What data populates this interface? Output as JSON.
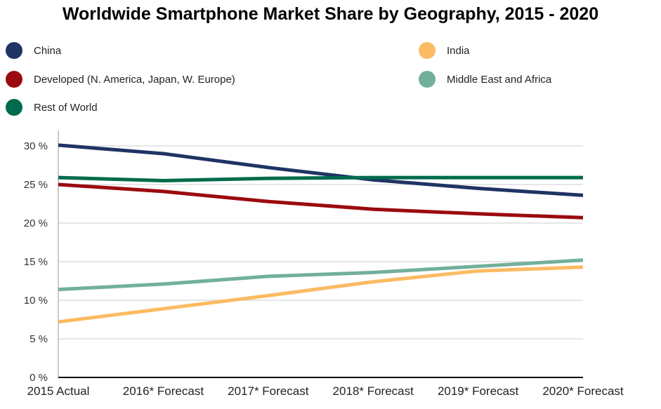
{
  "chart_data": {
    "type": "line",
    "title": "Worldwide Smartphone Market Share by Geography, 2015 - 2020",
    "categories": [
      "2015 Actual",
      "2016* Forecast",
      "2017* Forecast",
      "2018* Forecast",
      "2019* Forecast",
      "2020* Forecast"
    ],
    "yticks": [
      "0 %",
      "5 %",
      "10 %",
      "15 %",
      "20 %",
      "25 %",
      "30 %"
    ],
    "ylim": [
      0,
      30
    ],
    "grid": true,
    "legend": "top",
    "series": [
      {
        "name": "China",
        "color": "#1f3464",
        "values": [
          30.1,
          29.0,
          27.2,
          25.6,
          24.5,
          23.6
        ]
      },
      {
        "name": "India",
        "color": "#fbbb63",
        "values": [
          7.2,
          8.9,
          10.6,
          12.4,
          13.8,
          14.3
        ]
      },
      {
        "name": "Developed (N. America, Japan, W. Europe)",
        "color": "#9b0a0e",
        "values": [
          25.0,
          24.1,
          22.8,
          21.8,
          21.2,
          20.7
        ]
      },
      {
        "name": "Middle East and Africa",
        "color": "#72b09a",
        "values": [
          11.4,
          12.1,
          13.1,
          13.6,
          14.4,
          15.2
        ]
      },
      {
        "name": "Rest of World",
        "color": "#006b4c",
        "values": [
          25.9,
          25.5,
          25.8,
          25.9,
          25.9,
          25.9
        ]
      }
    ]
  }
}
